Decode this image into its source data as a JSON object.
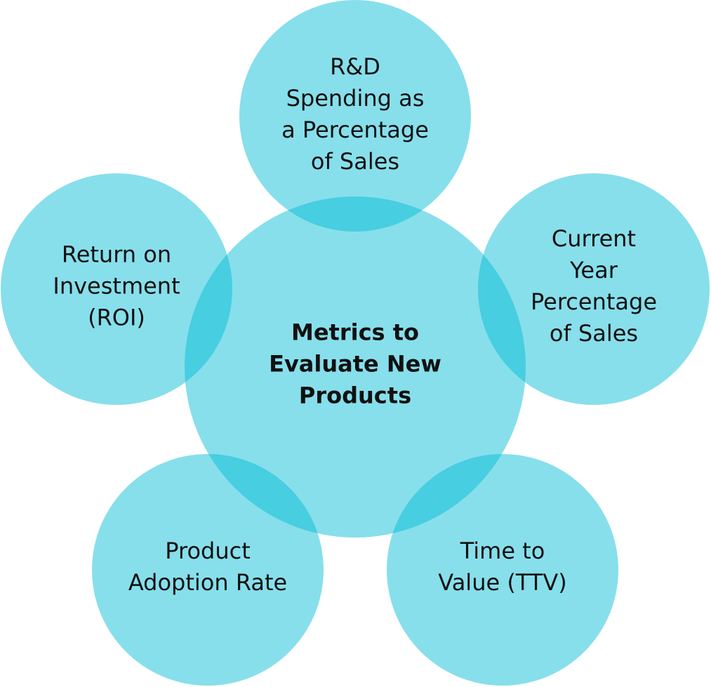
{
  "diagram": {
    "center": "Metrics to\nEvaluate New\nProducts",
    "satellites": [
      "R&D\nSpending as\na Percentage\nof Sales",
      "Return on\nInvestment\n(ROI)",
      "Current Year\nPercentage\nof Sales",
      "Product\nAdoption Rate",
      "Time to\nValue (TTV)"
    ],
    "colors": {
      "circle_fill": "#00bcd4",
      "text": "#111111"
    }
  }
}
